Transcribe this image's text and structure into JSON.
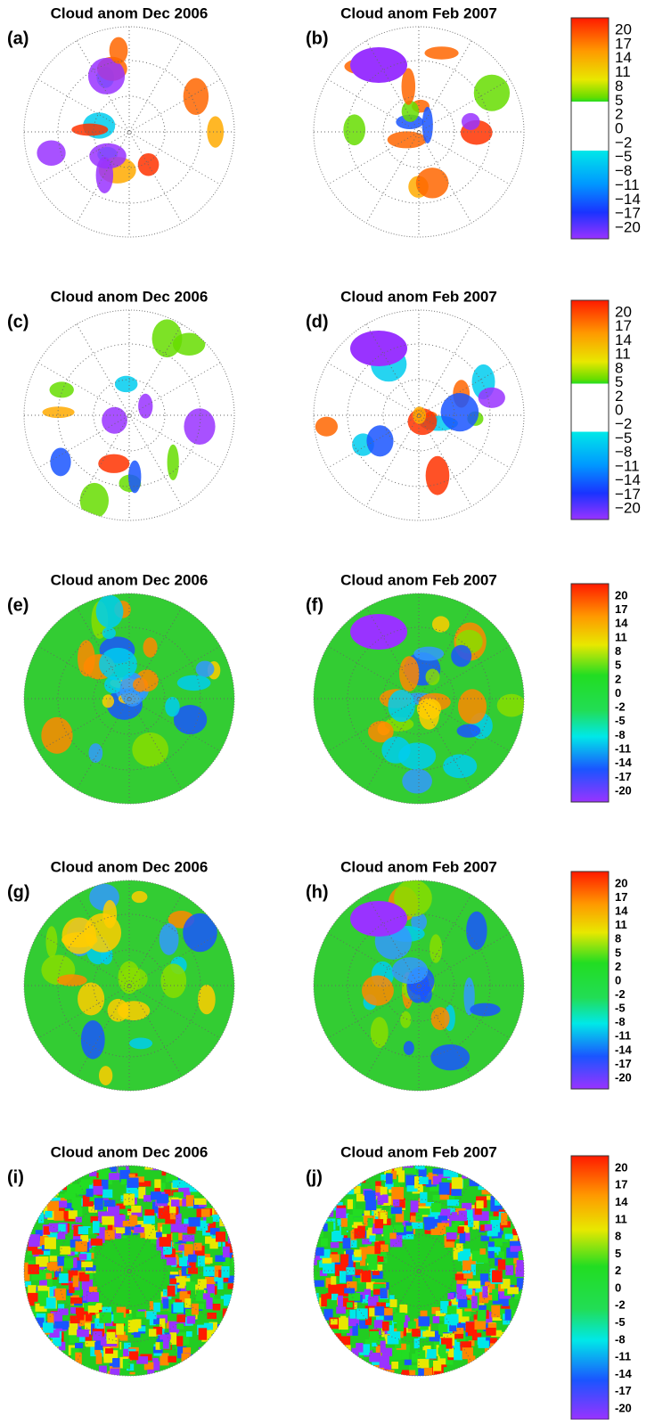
{
  "rows": [
    {
      "panels": [
        {
          "label": "(a)",
          "title": "Cloud anom Dec 2006"
        },
        {
          "label": "(b)",
          "title": "Cloud anom Feb 2007"
        }
      ],
      "colorbar_ticks": [
        "20",
        "17",
        "14",
        "11",
        "8",
        "5",
        "2",
        "0",
        "−2",
        "−5",
        "−8",
        "−11",
        "−14",
        "−17",
        "−20"
      ]
    },
    {
      "panels": [
        {
          "label": "(c)",
          "title": "Cloud anom Dec 2006"
        },
        {
          "label": "(d)",
          "title": "Cloud anom Feb 2007"
        }
      ],
      "colorbar_ticks": [
        "20",
        "17",
        "14",
        "11",
        "8",
        "5",
        "2",
        "0",
        "−2",
        "−5",
        "−8",
        "−11",
        "−14",
        "−17",
        "−20"
      ]
    },
    {
      "panels": [
        {
          "label": "(e)",
          "title": "Cloud anom Dec 2006"
        },
        {
          "label": "(f)",
          "title": "Cloud anom Feb 2007"
        }
      ],
      "colorbar_ticks": [
        "20",
        "17",
        "14",
        "11",
        "8",
        "5",
        "2",
        "0",
        "-2",
        "-5",
        "-8",
        "-11",
        "-14",
        "-17",
        "-20"
      ]
    },
    {
      "panels": [
        {
          "label": "(g)",
          "title": "Cloud anom Dec 2006"
        },
        {
          "label": "(h)",
          "title": "Cloud anom Feb 2007"
        }
      ],
      "colorbar_ticks": [
        "20",
        "17",
        "14",
        "11",
        "8",
        "5",
        "2",
        "0",
        "-2",
        "-5",
        "-8",
        "-11",
        "-14",
        "-17",
        "-20"
      ]
    },
    {
      "panels": [
        {
          "label": "(i)",
          "title": "Cloud anom Dec 2006"
        },
        {
          "label": "(j)",
          "title": "Cloud anom Feb 2007"
        }
      ],
      "colorbar_ticks": [
        "20",
        "17",
        "14",
        "11",
        "8",
        "5",
        "2",
        "0",
        "-2",
        "-5",
        "-8",
        "-11",
        "-14",
        "-17",
        "-20"
      ]
    }
  ]
}
